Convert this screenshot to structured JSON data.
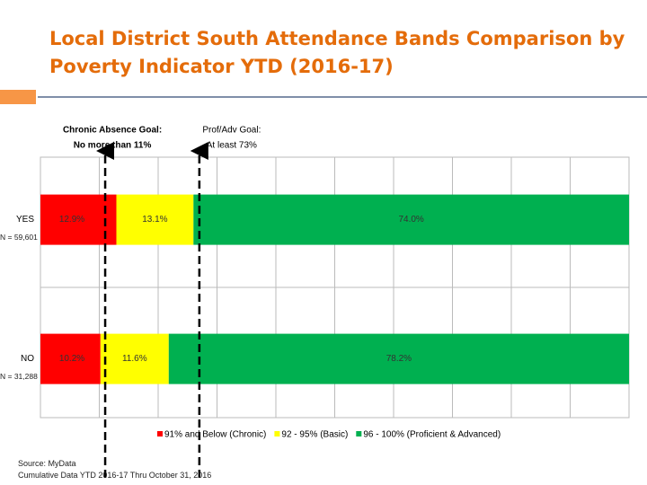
{
  "title": "Local District South Attendance Bands Comparison  by Poverty Indicator YTD (2016-17)",
  "chart_data": {
    "type": "stacked-barh",
    "categories": [
      "YES",
      "NO"
    ],
    "category_notes": [
      "N = 59,601",
      "N = 31,288"
    ],
    "series": [
      {
        "name": "91% and Below (Chronic)",
        "color": "#FF0000",
        "values": [
          12.9,
          10.2
        ],
        "value_labels": [
          "12.9%",
          "10.2%"
        ]
      },
      {
        "name": "92 - 95% (Basic)",
        "color": "#FFFF00",
        "values": [
          13.1,
          11.6
        ],
        "value_labels": [
          "13.1%",
          "11.6%"
        ]
      },
      {
        "name": "96 - 100% (Proficient & Advanced)",
        "color": "#00B050",
        "values": [
          74.0,
          78.2
        ],
        "value_labels": [
          "74.0%",
          "78.2%"
        ]
      }
    ],
    "xlim": [
      0,
      100
    ],
    "xticks": [
      0,
      10,
      20,
      30,
      40,
      50,
      60,
      70,
      80,
      90,
      100
    ],
    "grid": true,
    "goal_lines": [
      {
        "value": 11,
        "lines": [
          "Chronic Absence Goal:",
          "No more than 11%"
        ]
      },
      {
        "value": 27,
        "lines": [
          "Prof/Adv Goal:",
          "At least 73%"
        ]
      }
    ]
  },
  "source": [
    "Source: MyData",
    "Cumulative Data YTD 2016-17 Thru October 31, 2016"
  ]
}
